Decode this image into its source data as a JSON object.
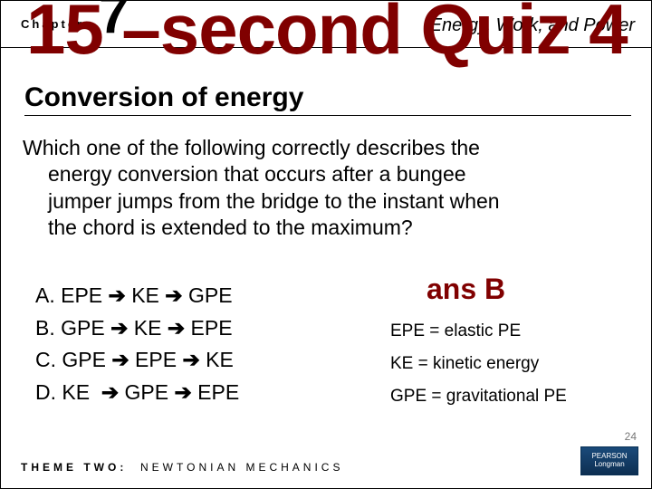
{
  "header": {
    "chapter_label": "Chapter",
    "chapter_number": "7",
    "chapter_title": "Energy, Work, and Power"
  },
  "title": "15 –second Quiz 4",
  "subtitle": "Conversion of energy",
  "question_line1": "Which one of the following correctly describes the",
  "question_line2": "energy conversion that occurs after a bungee",
  "question_line3": "jumper jumps from the bridge to the instant when",
  "question_line4": "the chord is extended to the maximum?",
  "arrow_glyph": "➔",
  "options": {
    "a": {
      "label": "A.",
      "seq": [
        "EPE",
        "KE",
        "GPE"
      ]
    },
    "b": {
      "label": "B.",
      "seq": [
        "GPE",
        "KE",
        "EPE"
      ]
    },
    "c": {
      "label": "C.",
      "seq": [
        "GPE",
        "EPE",
        "KE"
      ]
    },
    "d": {
      "label": "D.",
      "seq": [
        "KE",
        "GPE",
        "EPE"
      ]
    }
  },
  "answer": {
    "label": "ans B",
    "legend1": "EPE = elastic PE",
    "legend2": "KE = kinetic energy",
    "legend3": "GPE = gravitational PE"
  },
  "footer": {
    "theme_label": "THEME TWO:",
    "theme_text": "NEWTONIAN MECHANICS"
  },
  "logo": {
    "line1": "PEARSON",
    "line2": "Longman"
  },
  "page_number": "24",
  "colors": {
    "accent": "#800000",
    "text": "#000000",
    "background": "#ffffff"
  }
}
